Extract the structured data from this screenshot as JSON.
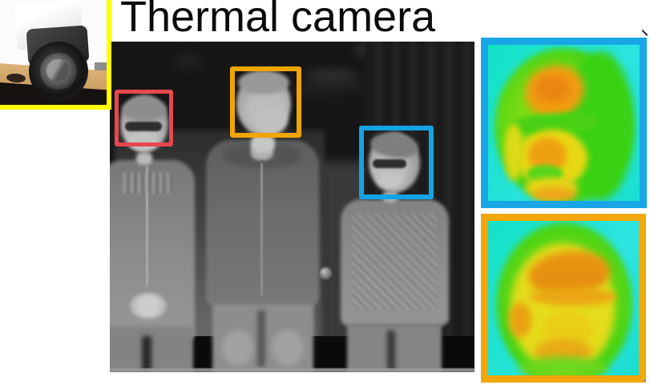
{
  "title": "Thermal camera",
  "colors": {
    "inset-border": "#ffff00",
    "box-red": "#e8474e",
    "box-orange": "#f0a500",
    "box-blue": "#14a3e3",
    "crop-border-blue": "#18a6e6",
    "crop-border-orange": "#f2a70b"
  },
  "figure": {
    "camera_inset": {
      "content": "photo of thermal camera device on wooden mount",
      "border_color": "#ffff00"
    },
    "main_image": {
      "content": "grayscale thermal image of three people standing indoors",
      "face_boxes": [
        {
          "person": "left person wearing sunglasses",
          "box_color": "#e8474e"
        },
        {
          "person": "middle person",
          "box_color": "#f0a500"
        },
        {
          "person": "right person wearing sunglasses",
          "box_color": "#14a3e3"
        }
      ]
    },
    "face_crops": [
      {
        "position": "top",
        "border_color": "#18a6e6",
        "content": "false-color thermal close-up of right person's face"
      },
      {
        "position": "bottom",
        "border_color": "#f2a70b",
        "content": "false-color thermal close-up of middle person's face"
      }
    ]
  }
}
